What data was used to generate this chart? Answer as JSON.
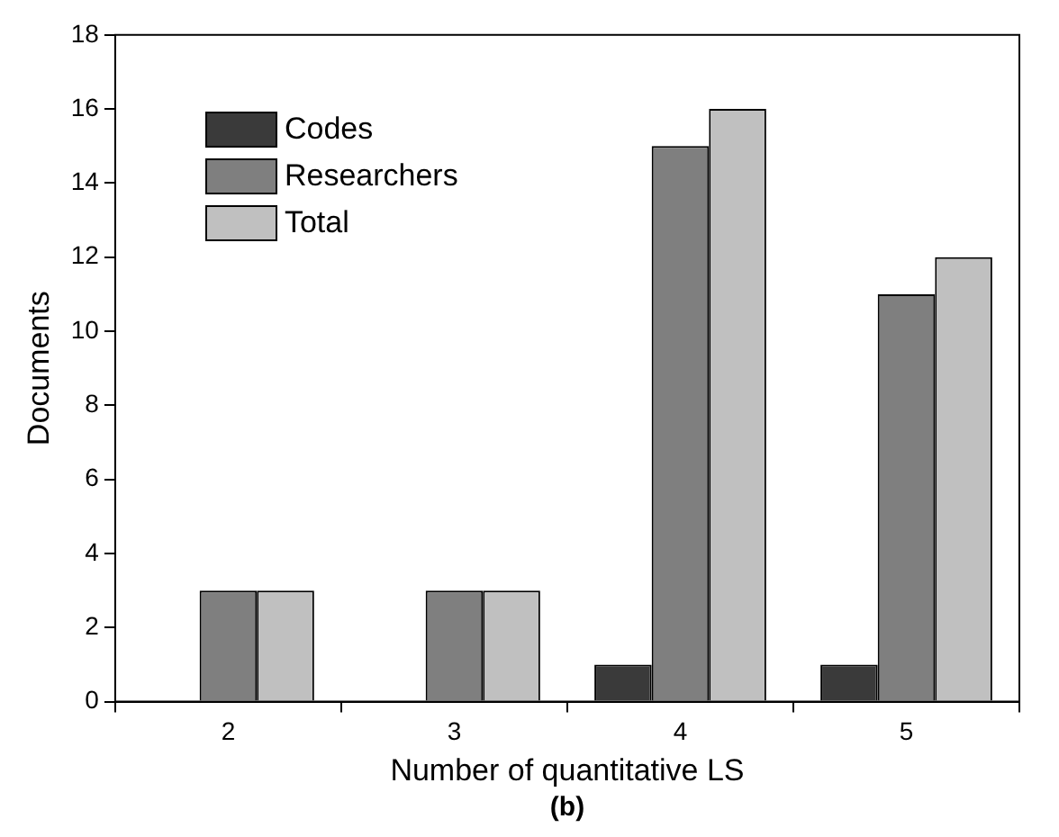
{
  "chart_data": {
    "type": "bar",
    "xlabel": "Number of quantitative LS",
    "ylabel": "Documents",
    "annotations": [
      "(b)"
    ],
    "categories": [
      "2",
      "3",
      "4",
      "5"
    ],
    "series": [
      {
        "name": "Codes",
        "color": "#3a3a3a",
        "values": [
          0,
          0,
          1,
          1
        ]
      },
      {
        "name": "Researchers",
        "color": "#7f7f7f",
        "values": [
          3,
          3,
          15,
          11
        ]
      },
      {
        "name": "Total",
        "color": "#c0c0c0",
        "values": [
          3,
          3,
          16,
          12
        ]
      }
    ],
    "ylim": [
      0,
      18
    ],
    "yticks": [
      0,
      2,
      4,
      6,
      8,
      10,
      12,
      14,
      16,
      18
    ],
    "grid": false,
    "legend": "top left"
  }
}
